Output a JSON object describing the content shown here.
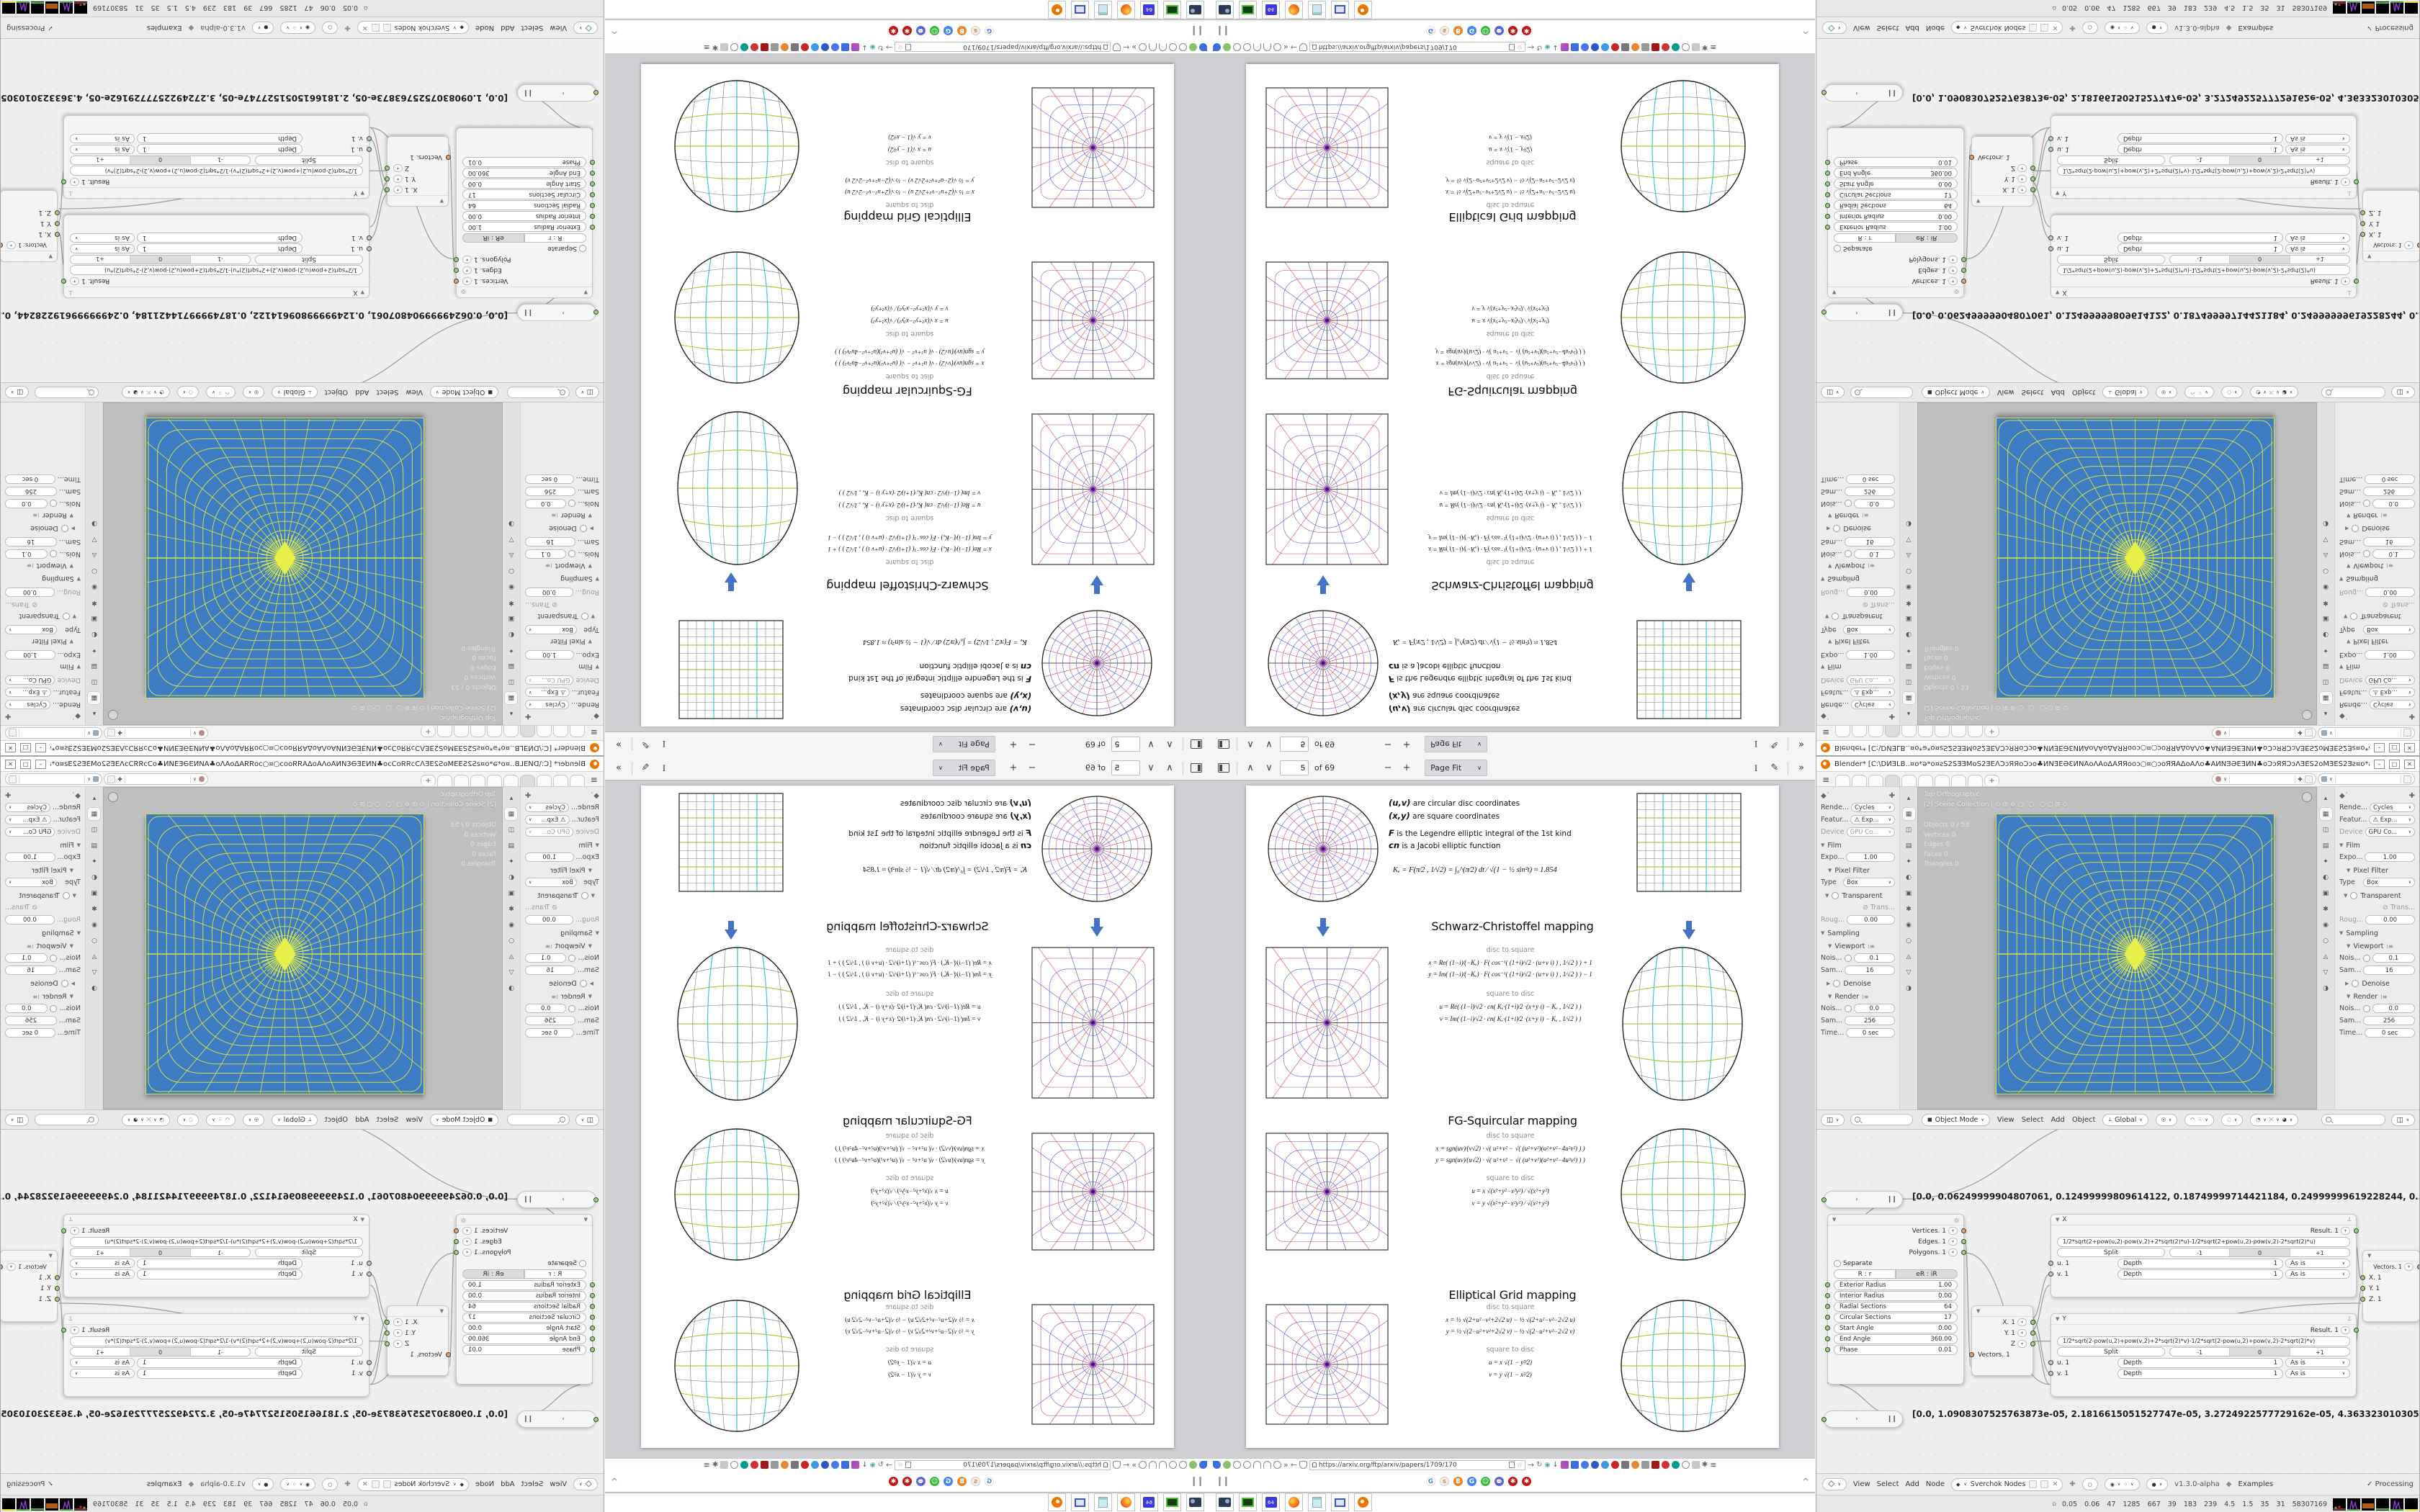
{
  "colors": {
    "accent_blue": "#4472c4",
    "map_blue": "#3d7bc3",
    "grid_yellow": "#d9e348",
    "teal_line": "#3fb9c9",
    "green_line": "#a4cf3d",
    "purple_center": "#7a1fa2"
  },
  "pdf": {
    "toolbar": {
      "page_value": "5",
      "page_of": "of 69",
      "zoom_out": "−",
      "zoom_in": "+",
      "zoom_label": "Page Fit",
      "next": "∨",
      "prev": "∧",
      "more": "»",
      "text_tool": "I",
      "draw_tool": "✎"
    },
    "legend": {
      "l1b": "(u,v)",
      "l1": "  are circular disc coordinates",
      "l2b": "(x,y)",
      "l2": "  are square coordinates",
      "l3b": "F",
      "l3": "  is the Legendre elliptic integral of the 1st kind",
      "l4b": "cn",
      "l4": "  is a Jacobi elliptic function"
    },
    "ke": "Kₑ =  F(π⁄2 , 1⁄√2) = ∫₀^(π⁄2)  dt ⁄ √(1 − ½ sin²t)   ≈ 1.854",
    "sections": [
      {
        "title": "Schwarz-Christoffel mapping",
        "d2s_label": "disc to square",
        "s2d_label": "square to disc",
        "d2s1": "x = Re( (1−i)⁄(−Kₑ) · F( cos⁻¹( (1+i)⁄√2 · (u+v i) ) , 1⁄√2 ) ) + 1",
        "d2s2": "y = Im( (1−i)⁄(−Kₑ) · F( cos⁻¹( (1+i)⁄√2 · (u+v i) ) , 1⁄√2 ) ) − 1",
        "s2d1": "u = Re( (1−i)⁄√2 · cn( Kₑ·(1+i)⁄2 ·(x+y i) − Kₑ , 1⁄√2 ) )",
        "s2d2": "v = Im( (1−i)⁄√2 · cn( Kₑ·(1+i)⁄2 ·(x+y i) − Kₑ , 1⁄√2 ) )"
      },
      {
        "title": "FG-Squircular mapping",
        "d2s_label": "disc to square",
        "s2d_label": "square to disc",
        "d2s1": "x = sgn(uv)⁄(v√2) · √( u²+v² − √( (u²+v²)(u²+v²−4u²v²) ) )",
        "d2s2": "y = sgn(uv)⁄(u√2) · √( u²+v² − √( (u²+v²)(u²+v²−4u²v²) ) )",
        "s2d1": "u = x √(x²+y²−x²y²) ⁄ √(x²+y²)",
        "s2d2": "v = y √(x²+y²−x²y²) ⁄ √(x²+y²)"
      },
      {
        "title": "Elliptical Grid mapping",
        "d2s_label": "disc to square",
        "s2d_label": "square to disc",
        "d2s1": "x = ½ √(2+u²−v²+2√2 u)  −  ½ √(2+u²−v²−2√2 u)",
        "d2s2": "y = ½ √(2−u²+v²+2√2 v)  −  ½ √(2−u²+v²−2√2 v)",
        "s2d1": "u = x √(1 − y²⁄2)",
        "s2d2": "v = y √(1 − x²⁄2)"
      }
    ]
  },
  "browser": {
    "url": "https://arxiv.org/ftp/arxiv/papers/1709/170",
    "pause": "❙❙",
    "collapse": "^",
    "overflow": "»",
    "back": "←",
    "forward": "→",
    "menu": "≡",
    "bookmarks": [
      "G",
      "s",
      "B",
      "G",
      "☺",
      "💬",
      "✱",
      "✱"
    ]
  },
  "taskbar": {
    "apps": [
      "screenshot-tool",
      "capture-green",
      "floppy-64",
      "firefox",
      "notepad",
      "window-manager",
      "blender"
    ],
    "floppy_label": "64"
  },
  "blender": {
    "title": "Blender* [C:\\DИƎLB..¤ο*ǝ*ο¤ƨS2SƎƎMοS2ƎEΛƆɔЯЯοƆɔο♣ИNƎEƏƐИNAοΛAοΔAЯЯοοɔ○¤○ɔοЯЯAΔοAΛο♣AИNƎƏEƎИN♣οƆɔЯЯƆɔΛƎES2οMƎES2Ǝƨ¤ο*ǝ*ο¤...",
    "win_min": "–",
    "win_max": "□",
    "win_close": "✕",
    "props": {
      "render_l": "Rende...",
      "render_v": "Cycles",
      "feature_l": "Featur...",
      "feature_v": "⚠ Exp...",
      "device_l": "Device",
      "device_v": "GPU Co...",
      "film": "Film",
      "expo_l": "Expo...",
      "expo_v": "1.00",
      "pixel_filter": "Pixel Filter",
      "type_l": "Type",
      "type_v": "Box",
      "transparent": "Transparent",
      "trans_l": "⊘ Trans...",
      "roug_l": "Roug...",
      "roug_v": "0.00",
      "sampling": "Sampling",
      "viewport": "Viewport",
      "nois1_l": "Nois...",
      "nois1_v": "0.1",
      "sam1_l": "Sam...",
      "sam1_v": "16",
      "denoise": "Denoise",
      "render2": "Render",
      "nois2_l": "Nois...",
      "nois2_v": "0.0",
      "sam2_l": "Sam...",
      "sam2_v": "256",
      "time_l": "Time...",
      "time_v": "0 sec"
    },
    "overlay": {
      "view": "Top Orthographic",
      "scene": "(2) Scene Collection | ⊙ ⊞ ⊕ ○ ˙○˙ ○·○ ⊞ ⊙",
      "stats": [
        "Objects  0 / 53",
        "Vertices  0",
        "Edges  0",
        "Faces  0",
        "Triangles  0"
      ]
    },
    "vp_header": {
      "mode": "Object Mode",
      "menus": [
        "View",
        "Select",
        "Add",
        "Object"
      ],
      "orient": "Global"
    },
    "node_editor": {
      "stetho_top": "[0.0, 0.06249999904807061, 0.12499999809614122, 0.18749999714421184, 0.24999999619228244, 0.31249999524035305, 0.374",
      "stetho_bottom": "[0.0, 1.0908307525763873e-05, 2.1816615051527747e-05, 3.2724922577729162e-05, 4.363323010305549e-05, 5.454153762881936",
      "circle_node": {
        "out1": "Vertices. 1",
        "out2": "Edges. 1",
        "out3": "Polygons. 1",
        "separate": "Separate",
        "mode_a": "R : r",
        "mode_b": "eR : iR",
        "f1l": "Exterior Radius",
        "f1v": "1.00",
        "f2l": "Interior Radius",
        "f2v": "0.00",
        "f3l": "Radial Sections",
        "f3v": "64",
        "f4l": "Circular Sections",
        "f4v": "17",
        "f5l": "Start Angle",
        "f5v": "0.00",
        "f6l": "End Angle",
        "f6v": "360.00",
        "f7l": "Phase",
        "f7v": "0.01"
      },
      "vout_node": {
        "x": "X. 1",
        "y": "Y. 1",
        "z": "Z",
        "vec": "Vectors. 1"
      },
      "x_node": {
        "name": "X",
        "result": "Result. 1",
        "formula": "1/2*sqrt(2+pow(u,2)-pow(v,2)+2*sqrt(2)*u)-1/2*sqrt(2+pow(u,2)-pow(v,2)-2*sqrt(2)*u)",
        "split": "Split",
        "seg1": "-1",
        "seg2": "0",
        "seg3": "+1",
        "depth": "Depth",
        "depth_v": "1",
        "asis": "As is",
        "in1": "u. 1",
        "in2": "v. 1"
      },
      "y_node": {
        "name": "Y",
        "result": "Result. 1",
        "formula": "1/2*sqrt(2-pow(u,2)+pow(v,2)+2*sqrt(2)*v)-1/2*sqrt(2-pow(u,2)+pow(v,2)-2*sqrt(2)*v)",
        "split": "Split",
        "seg1": "-1",
        "seg2": "0",
        "seg3": "+1",
        "depth": "Depth",
        "depth_v": "1",
        "asis": "As is",
        "in1": "u. 1",
        "in2": "v. 1"
      },
      "vin_node": {
        "vec": "Vectors. 1",
        "x": "X. 1",
        "y": "Y. 1",
        "z": "Z. 1"
      }
    },
    "node_header": {
      "menus": [
        "View",
        "Select",
        "Add",
        "Node"
      ],
      "tree": "Sverchok Nodes",
      "version": "v1.3.0-alpha",
      "examples": "Examples",
      "processing": "✓  Processing"
    },
    "status": "0.05 0.06  47  1285 667  39  183  239  4.5  1.5  35  31  58307169"
  }
}
